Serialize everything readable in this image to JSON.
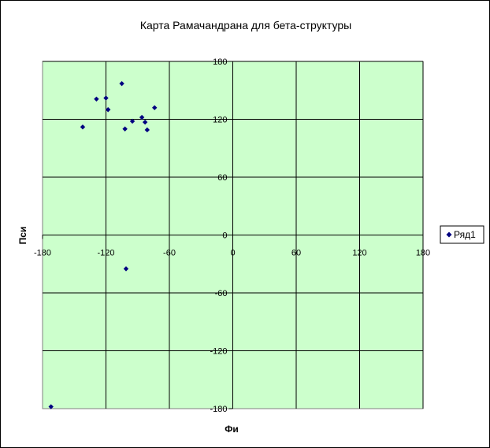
{
  "chart_data": {
    "type": "scatter",
    "title": "Карта Рамачандрана для бета-структуры",
    "xlabel": "Фи",
    "ylabel": "Пси",
    "xlim": [
      -180,
      180
    ],
    "ylim": [
      -180,
      180
    ],
    "xticks": [
      -180,
      -120,
      -60,
      0,
      60,
      120,
      180
    ],
    "yticks": [
      -180,
      -120,
      -60,
      0,
      60,
      120,
      180
    ],
    "tick_labels_x": [
      "-180",
      "-120",
      "-60",
      "0",
      "60",
      "120",
      "180"
    ],
    "tick_labels_y": [
      "-180",
      "-120",
      "-60",
      "0",
      "60",
      "120",
      "180"
    ],
    "grid": true,
    "legend_position": "right",
    "plot_background": "#ccffcc",
    "marker_color": "#000080",
    "series": [
      {
        "name": "Ряд1",
        "points": [
          {
            "x": -142,
            "y": 112
          },
          {
            "x": -129,
            "y": 141
          },
          {
            "x": -120,
            "y": 142
          },
          {
            "x": -118,
            "y": 130
          },
          {
            "x": -105,
            "y": 157
          },
          {
            "x": -102,
            "y": 110
          },
          {
            "x": -95,
            "y": 118
          },
          {
            "x": -86,
            "y": 122
          },
          {
            "x": -83,
            "y": 117
          },
          {
            "x": -81,
            "y": 109
          },
          {
            "x": -74,
            "y": 132
          },
          {
            "x": -101,
            "y": -35
          },
          {
            "x": -172,
            "y": -178
          }
        ]
      }
    ]
  }
}
